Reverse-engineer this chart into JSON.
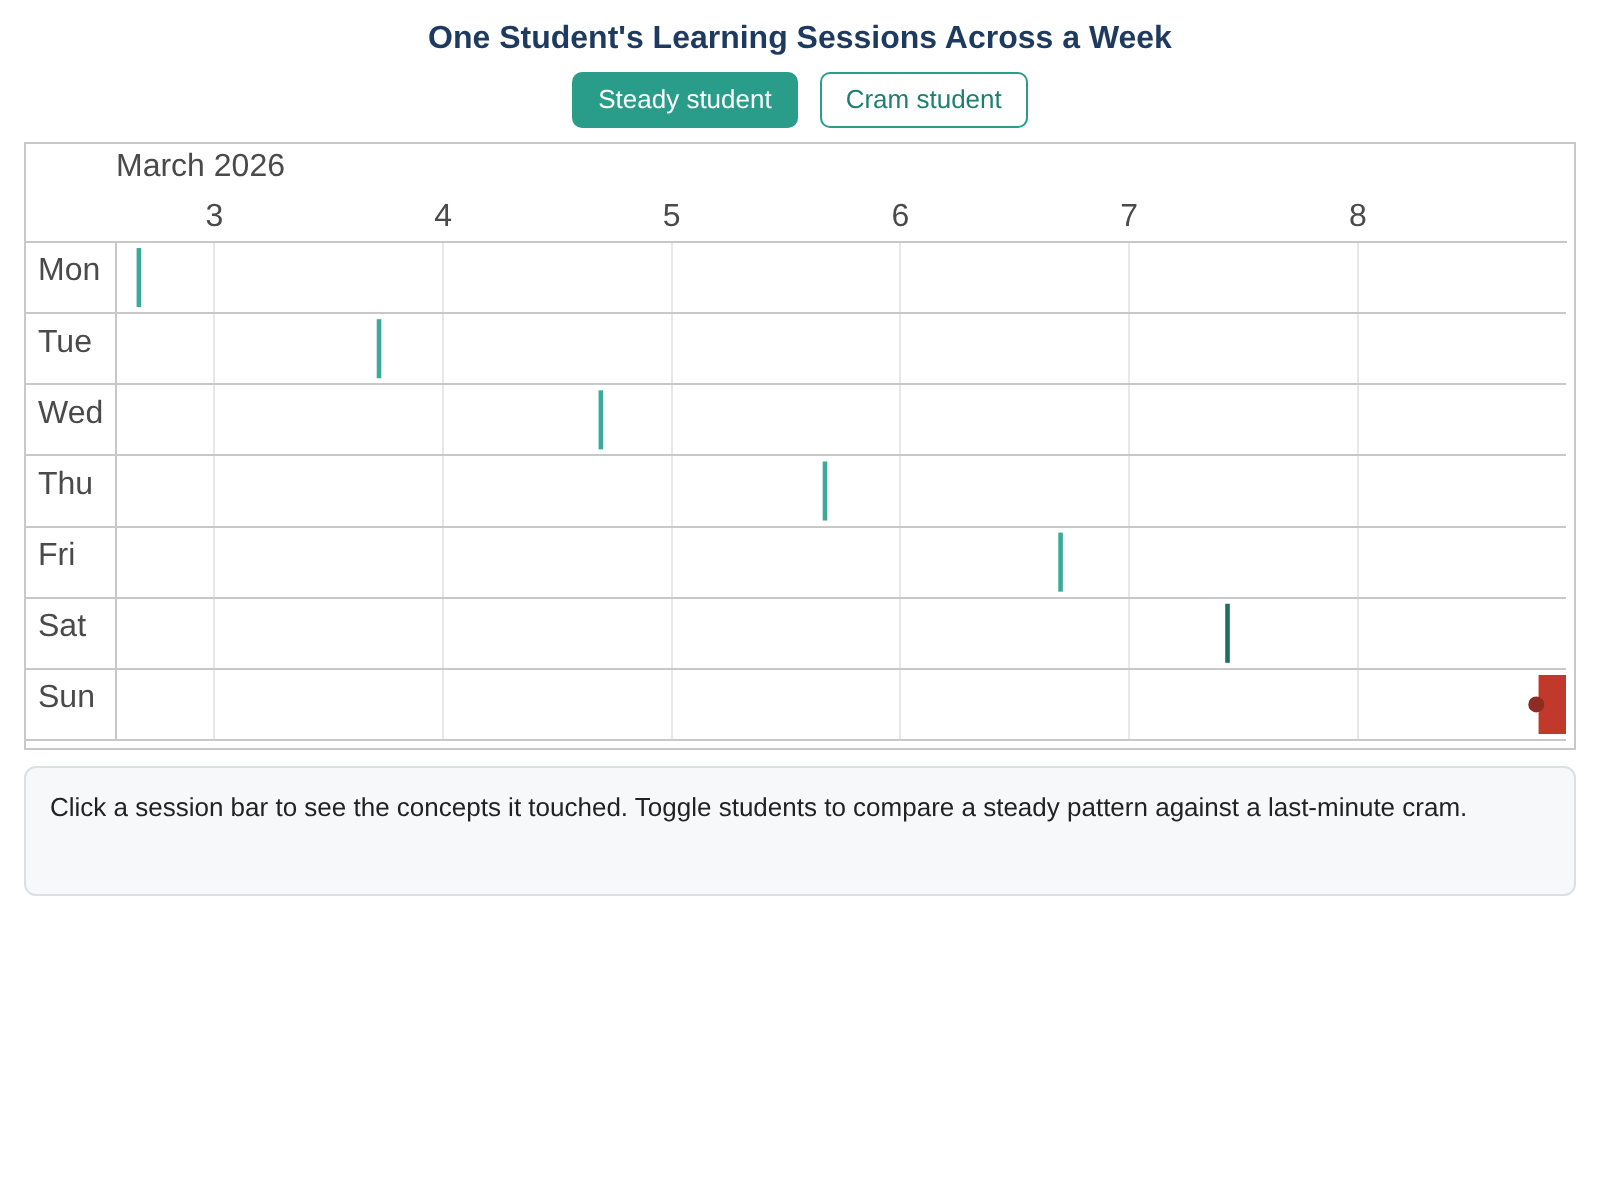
{
  "chart_data": {
    "type": "bar",
    "orientation": "horizontal",
    "title": "One Student's Learning Sessions Across a Week",
    "xlabel": "March 2026",
    "categories": [
      "Mon",
      "Tue",
      "Wed",
      "Thu",
      "Fri",
      "Sat",
      "Sun"
    ],
    "xlim": [
      2.57,
      8.91
    ],
    "xticks": [
      3,
      4,
      5,
      6,
      7,
      8
    ],
    "grid": true,
    "series": [
      {
        "colors": [
          "#3aab98",
          "#3aab98",
          "#3aab98",
          "#3aab98",
          "#3aab98",
          "#1b6e61",
          "#c0392b"
        ],
        "base": [
          2.66,
          3.71,
          4.68,
          5.66,
          6.69,
          7.42,
          8.79
        ],
        "values": [
          0.02,
          0.02,
          0.02,
          0.02,
          0.02,
          0.02,
          0.12
        ]
      },
      {
        "type": "scatter",
        "marker": "circle",
        "color": "#8e2b22",
        "x": [
          "Sun"
        ],
        "values": [
          8.78
        ]
      }
    ],
    "annotations": [
      "Steady student",
      "Cram student",
      "Click a session bar to see the concepts it touched. Toggle students to compare a steady pattern against a last-minute cram."
    ]
  }
}
